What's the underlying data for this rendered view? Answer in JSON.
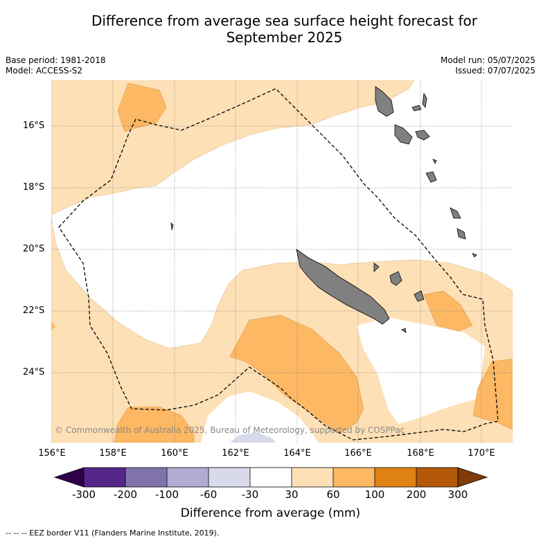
{
  "title_line1": "Difference from average sea surface height forecast for",
  "title_line2": "September 2025",
  "meta_left": {
    "base_period": "Base period: 1981-2018",
    "model": "Model: ACCESS-S2"
  },
  "meta_right": {
    "model_run": "Model run: 05/07/2025",
    "issued": "Issued: 07/07/2025"
  },
  "lat_labels": [
    "16°S",
    "18°S",
    "20°S",
    "22°S",
    "24°S"
  ],
  "lon_labels": [
    "156°E",
    "158°E",
    "160°E",
    "162°E",
    "164°E",
    "166°E",
    "168°E",
    "170°E"
  ],
  "copyright": "© Commonwealth of Australia 2025, Bureau of Meteorology, supported by COSPPac",
  "colorbar": {
    "ticks": [
      "-300",
      "-200",
      "-100",
      "-60",
      "-30",
      "30",
      "60",
      "100",
      "200",
      "300"
    ],
    "colors": [
      "#2d004b",
      "#542788",
      "#8073ac",
      "#b2abd2",
      "#d8daeb",
      "#ffffff",
      "#fee0b6",
      "#fdb863",
      "#e08214",
      "#b35806",
      "#7f3b08"
    ],
    "label": "Difference from average (mm)"
  },
  "legend_note": "--  --  -- EEZ border V11 (Flanders Marine Institute, 2019).",
  "land_color": "#808080",
  "eez_line_color": "#000000"
}
